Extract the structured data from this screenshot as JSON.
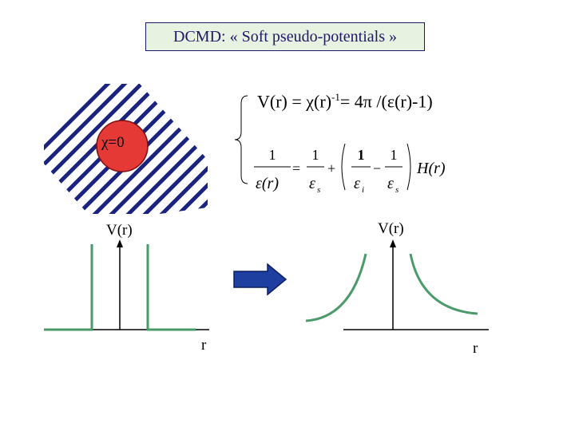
{
  "title": "DCMD: « Soft pseudo-potentials »",
  "equation_1": {
    "lhs": "V(r) = χ(r)",
    "exponent": "-1",
    "rhs": "= 4π /(ε(r)-1)"
  },
  "equation_2": {
    "numerator_one": "1",
    "eps_r": "ε(r)",
    "eps_s": "ε",
    "sub_s": "s",
    "eps_i": "ε",
    "sub_i": "i",
    "H_r": "H(r)"
  },
  "chi_label": "χ=0",
  "left_plot": {
    "y_label": "V(r)",
    "x_label": "r"
  },
  "right_plot": {
    "y_label": "V(r)",
    "x_label": "r"
  },
  "colors": {
    "hatch": "#1a237e",
    "sphere": "#e53935",
    "curve": "#4a9a6a",
    "arrow": "#1f3fa0",
    "title_bg": "#e8f2e0"
  }
}
